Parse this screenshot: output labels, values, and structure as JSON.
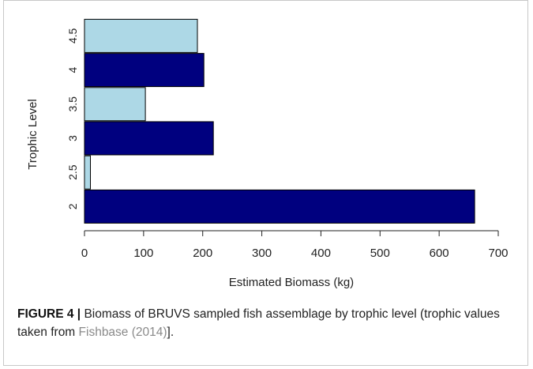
{
  "chart_data": {
    "type": "bar",
    "orientation": "horizontal",
    "categories": [
      "2",
      "2.5",
      "3",
      "3.5",
      "4",
      "4.5"
    ],
    "values": [
      660,
      10,
      218,
      103,
      202,
      191
    ],
    "bar_colors": [
      "#00007f",
      "#add8e6",
      "#00007f",
      "#add8e6",
      "#00007f",
      "#add8e6"
    ],
    "xlabel": "Estimated Biomass (kg)",
    "ylabel": "Trophic Level",
    "xlim": [
      0,
      700
    ],
    "xticks": [
      "0",
      "100",
      "200",
      "300",
      "400",
      "500",
      "600",
      "700"
    ],
    "grid": false
  },
  "caption": {
    "label": "FIGURE 4 |",
    "text_before": " Biomass of BRUVS sampled fish assemblage by trophic level (trophic values taken from ",
    "citation": "Fishbase (2014)",
    "text_after": "]."
  }
}
